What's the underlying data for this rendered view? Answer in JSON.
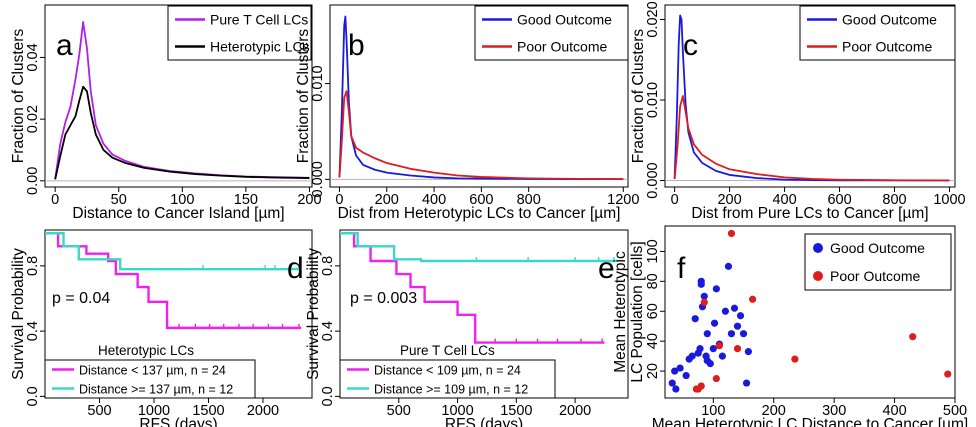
{
  "colors": {
    "purple": "#b41ee6",
    "black": "#000000",
    "blue": "#1a1adc",
    "red": "#dc1e1e",
    "magenta": "#ee22ee",
    "cyan": "#3ad8c8",
    "grid": "#b4b4b4"
  },
  "chart_data": [
    {
      "panel": "a",
      "type": "line",
      "xlabel": "Distance to Cancer Island [µm]",
      "ylabel": "Fraction of Clusters",
      "xlim": [
        -8,
        202
      ],
      "ylim": [
        -0.002,
        0.057
      ],
      "xticks": [
        "0",
        "50",
        "100",
        "150",
        "200"
      ],
      "xtick_values": [
        0,
        50,
        100,
        150,
        200
      ],
      "yticks": [
        "0.00",
        "0.02",
        "0.04"
      ],
      "ytick_values": [
        0,
        0.02,
        0.04
      ],
      "legend": {
        "placement": "top-right",
        "entries": [
          "Pure T Cell LCs",
          "Heterotypic LCs"
        ]
      },
      "zero_line": true,
      "series": [
        {
          "name": "Pure T Cell LCs",
          "color": "#b41ee6",
          "x": [
            0,
            4,
            8,
            12,
            16,
            19,
            22,
            25,
            28,
            32,
            38,
            45,
            55,
            70,
            90,
            110,
            130,
            150,
            170,
            200
          ],
          "y": [
            0.0005,
            0.012,
            0.019,
            0.024,
            0.033,
            0.041,
            0.0515,
            0.043,
            0.029,
            0.018,
            0.012,
            0.0085,
            0.0065,
            0.0045,
            0.0032,
            0.0024,
            0.0018,
            0.0014,
            0.0012,
            0.001
          ]
        },
        {
          "name": "Heterotypic LCs",
          "color": "#000000",
          "x": [
            0,
            4,
            8,
            12,
            16,
            19,
            22,
            25,
            28,
            32,
            38,
            45,
            55,
            70,
            90,
            110,
            130,
            150,
            170,
            200
          ],
          "y": [
            0.0005,
            0.008,
            0.015,
            0.018,
            0.021,
            0.026,
            0.0305,
            0.029,
            0.022,
            0.015,
            0.01,
            0.0075,
            0.0058,
            0.0042,
            0.003,
            0.0022,
            0.0017,
            0.0013,
            0.0011,
            0.0009
          ]
        }
      ]
    },
    {
      "panel": "b",
      "type": "line",
      "xlabel": "Dist from Heterotypic LCs to Cancer [µm]",
      "ylabel": "Fraction of Clusters",
      "xlim": [
        -40,
        1220
      ],
      "ylim": [
        -0.0008,
        0.0182
      ],
      "xticks": [
        "0",
        "200",
        "400",
        "600",
        "800",
        "1200"
      ],
      "xtick_values": [
        0,
        200,
        400,
        600,
        800,
        1200
      ],
      "yticks": [
        "0.000",
        "0.010"
      ],
      "ytick_values": [
        0,
        0.01
      ],
      "legend": {
        "placement": "top-right",
        "entries": [
          "Good Outcome",
          "Poor Outcome"
        ]
      },
      "zero_line": true,
      "series": [
        {
          "name": "Good Outcome",
          "color": "#1a1adc",
          "x": [
            0,
            10,
            20,
            25,
            30,
            40,
            50,
            70,
            100,
            150,
            200,
            300,
            400,
            500,
            600,
            800,
            1000,
            1200
          ],
          "y": [
            0.0002,
            0.007,
            0.016,
            0.017,
            0.0145,
            0.008,
            0.0045,
            0.0025,
            0.0015,
            0.001,
            0.0007,
            0.0004,
            0.0002,
            0.0001,
            8e-05,
            4e-05,
            3e-05,
            2e-05
          ]
        },
        {
          "name": "Poor Outcome",
          "color": "#dc1e1e",
          "x": [
            0,
            10,
            20,
            30,
            40,
            50,
            70,
            100,
            150,
            200,
            300,
            400,
            500,
            600,
            800,
            1000,
            1200
          ],
          "y": [
            0.0002,
            0.004,
            0.0085,
            0.0092,
            0.007,
            0.0045,
            0.0033,
            0.0028,
            0.0022,
            0.0017,
            0.0011,
            0.0007,
            0.0004,
            0.00025,
            0.0001,
            5e-05,
            3e-05
          ]
        }
      ]
    },
    {
      "panel": "c",
      "type": "line",
      "xlabel": "Dist from Pure LCs to Cancer [µm]",
      "ylabel": "Fraction of Clusters",
      "xlim": [
        -35,
        1020
      ],
      "ylim": [
        -0.0008,
        0.0218
      ],
      "xticks": [
        "0",
        "200",
        "400",
        "600",
        "800",
        "1000"
      ],
      "xtick_values": [
        0,
        200,
        400,
        600,
        800,
        1000
      ],
      "yticks": [
        "0.000",
        "0.010",
        "0.020"
      ],
      "ytick_values": [
        0,
        0.01,
        0.02
      ],
      "legend": {
        "placement": "top-right",
        "entries": [
          "Good Outcome",
          "Poor Outcome"
        ]
      },
      "zero_line": true,
      "series": [
        {
          "name": "Good Outcome",
          "color": "#1a1adc",
          "x": [
            0,
            8,
            15,
            20,
            25,
            30,
            40,
            50,
            70,
            100,
            150,
            200,
            300,
            400,
            500,
            600,
            800,
            1000
          ],
          "y": [
            0.0002,
            0.008,
            0.017,
            0.0205,
            0.02,
            0.016,
            0.0095,
            0.006,
            0.0035,
            0.0022,
            0.0012,
            0.0007,
            0.0003,
            0.00012,
            5e-05,
            3e-05,
            2e-05,
            1e-05
          ]
        },
        {
          "name": "Poor Outcome",
          "color": "#dc1e1e",
          "x": [
            0,
            10,
            20,
            30,
            40,
            50,
            70,
            100,
            150,
            200,
            300,
            400,
            500,
            600,
            800,
            1000
          ],
          "y": [
            0.0002,
            0.004,
            0.0092,
            0.0105,
            0.0085,
            0.0065,
            0.0045,
            0.0032,
            0.0021,
            0.0014,
            0.0008,
            0.0004,
            0.0002,
            0.0001,
            4e-05,
            2e-05
          ]
        }
      ]
    },
    {
      "panel": "d",
      "type": "line",
      "xlabel": "RFS (days)",
      "ylabel": "Survival Probability",
      "xlim": [
        0,
        2450
      ],
      "ylim": [
        -0.01,
        1.02
      ],
      "xticks": [
        "500",
        "1000",
        "1500",
        "2000"
      ],
      "xtick_values": [
        500,
        1000,
        1500,
        2000
      ],
      "yticks": [
        "0.0",
        "0.4",
        "0.8"
      ],
      "ytick_values": [
        0,
        0.4,
        0.8
      ],
      "annotation": "p = 0.04",
      "subtitle": "Heterotypic LCs",
      "legend": {
        "placement": "bottom-left",
        "entries": [
          "Distance < 137 µm, n = 24",
          "Distance >= 137 µm, n = 12"
        ]
      },
      "series": [
        {
          "name": "Distance < 137 µm, n = 24",
          "color": "#ee22ee",
          "x": [
            0,
            120,
            380,
            580,
            650,
            850,
            950,
            1120,
            2350
          ],
          "y": [
            1.0,
            0.92,
            0.875,
            0.83,
            0.75,
            0.67,
            0.58,
            0.42,
            0.42
          ],
          "censor": [
            1230,
            1380,
            1510,
            1640,
            1780,
            1910,
            2050,
            2180,
            2330
          ]
        },
        {
          "name": "Distance >= 137 µm, n = 12",
          "color": "#3ad8c8",
          "x": [
            0,
            170,
            310,
            690,
            2350
          ],
          "y": [
            1.0,
            0.92,
            0.84,
            0.78,
            0.78
          ],
          "censor": [
            1450,
            2020,
            2110,
            2260,
            2330
          ]
        }
      ]
    },
    {
      "panel": "e",
      "type": "line",
      "xlabel": "RFS (days)",
      "ylabel": "Survival Probability",
      "xlim": [
        0,
        2450
      ],
      "ylim": [
        -0.01,
        1.02
      ],
      "xticks": [
        "500",
        "1000",
        "1500",
        "2000"
      ],
      "xtick_values": [
        500,
        1000,
        1500,
        2000
      ],
      "yticks": [
        "0.0",
        "0.4",
        "0.8"
      ],
      "ytick_values": [
        0,
        0.4,
        0.8
      ],
      "annotation": "p = 0.003",
      "subtitle": "Pure T Cell LCs",
      "legend": {
        "placement": "bottom-left",
        "entries": [
          "Distance < 109 µm, n = 24",
          "Distance >= 109 µm, n = 12"
        ]
      },
      "series": [
        {
          "name": "Distance < 109 µm, n = 24",
          "color": "#ee22ee",
          "x": [
            0,
            120,
            260,
            480,
            600,
            720,
            1000,
            1150,
            2250
          ],
          "y": [
            1.0,
            0.92,
            0.83,
            0.75,
            0.67,
            0.58,
            0.5,
            0.33,
            0.33
          ],
          "censor": [
            1320,
            1500,
            1680,
            1850,
            2050,
            2230
          ]
        },
        {
          "name": "Distance >= 109 µm, n = 12",
          "color": "#3ad8c8",
          "x": [
            0,
            150,
            460,
            690,
            2360
          ],
          "y": [
            1.0,
            0.92,
            0.84,
            0.83,
            0.83
          ],
          "censor": [
            1160,
            1600,
            2000,
            2200,
            2330
          ]
        }
      ]
    },
    {
      "panel": "f",
      "type": "scatter",
      "xlabel": "Mean Heterotypic LC Distance to Cancer [µm]",
      "ylabel": "Mean Heterotypic\nLC Population [cells]",
      "xlim": [
        20,
        500
      ],
      "ylim": [
        2,
        117
      ],
      "xticks": [
        "100",
        "200",
        "300",
        "400",
        "500"
      ],
      "xtick_values": [
        100,
        200,
        300,
        400,
        500
      ],
      "yticks": [
        "20",
        "40",
        "60",
        "80",
        "100"
      ],
      "ytick_values": [
        20,
        40,
        60,
        80,
        100
      ],
      "legend": {
        "placement": "top-right",
        "entries": [
          "Good Outcome",
          "Poor Outcome"
        ]
      },
      "series": [
        {
          "name": "Good Outcome",
          "color": "#1a1adc",
          "x": [
            32,
            36,
            38,
            45,
            55,
            60,
            65,
            70,
            75,
            78,
            80,
            85,
            88,
            90,
            95,
            100,
            102,
            105,
            110,
            115,
            120,
            125,
            130,
            135,
            140,
            145,
            150,
            155,
            158,
            80,
            82,
            90
          ],
          "y": [
            12,
            20,
            8,
            22,
            17,
            28,
            30,
            55,
            32,
            35,
            80,
            70,
            30,
            45,
            25,
            35,
            52,
            75,
            38,
            30,
            60,
            90,
            45,
            62,
            50,
            57,
            45,
            12,
            33,
            78,
            63,
            27
          ]
        },
        {
          "name": "Poor Outcome",
          "color": "#dc1e1e",
          "x": [
            72,
            75,
            80,
            85,
            105,
            110,
            130,
            140,
            165,
            235,
            430,
            488
          ],
          "y": [
            8,
            8,
            10,
            66,
            15,
            37,
            112,
            35,
            68,
            28,
            43,
            18
          ]
        }
      ]
    }
  ]
}
